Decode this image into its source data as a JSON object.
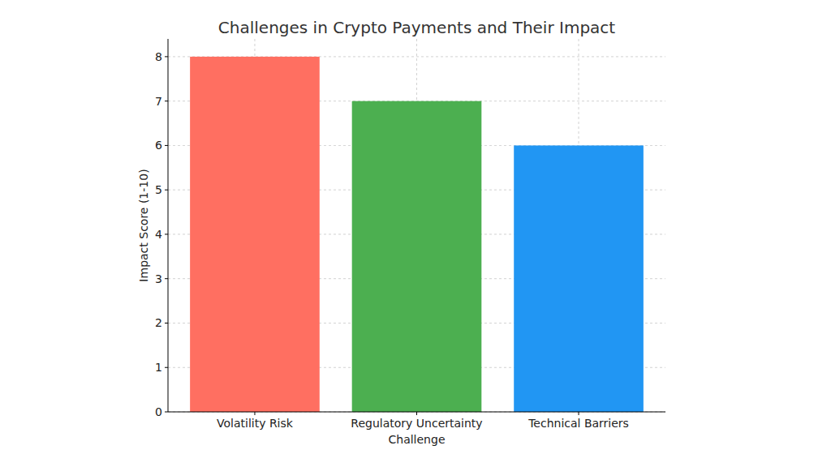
{
  "chart_data": {
    "type": "bar",
    "title": "Challenges in Crypto Payments and Their Impact",
    "x_label": "Challenge",
    "y_label": "Impact Score (1-10)",
    "categories": [
      "Volatility Risk",
      "Regulatory Uncertainty",
      "Technical Barriers"
    ],
    "values": [
      8,
      7,
      6
    ],
    "colors": [
      "#ff6f61",
      "#4caf50",
      "#2196f3"
    ],
    "ylim": [
      0,
      8.4
    ],
    "yticks": [
      0,
      1,
      2,
      3,
      4,
      5,
      6,
      7,
      8
    ],
    "grid": true
  }
}
